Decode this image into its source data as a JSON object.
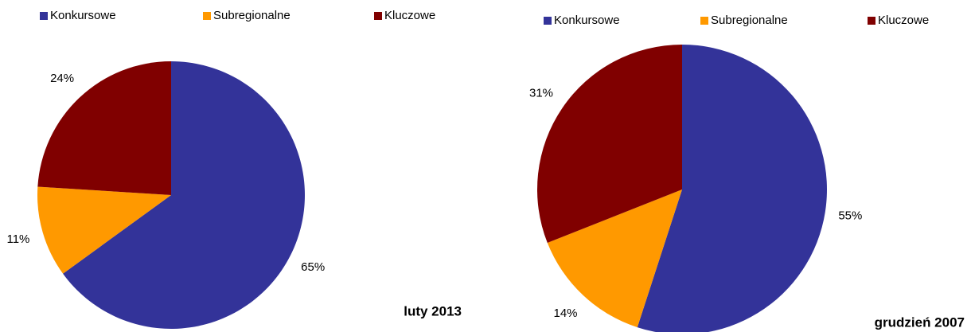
{
  "chart_data": [
    {
      "type": "pie",
      "title": "luty 2013",
      "categories": [
        "Konkursowe",
        "Subregionalne",
        "Kluczowe"
      ],
      "values": [
        65,
        11,
        24
      ],
      "value_labels": [
        "65%",
        "11%",
        "24%"
      ],
      "colors": [
        "#333399",
        "#ff9900",
        "#800000"
      ]
    },
    {
      "type": "pie",
      "title": "grudzień 2007",
      "categories": [
        "Konkursowe",
        "Subregionalne",
        "Kluczowe"
      ],
      "values": [
        55,
        14,
        31
      ],
      "value_labels": [
        "55%",
        "14%",
        "31%"
      ],
      "colors": [
        "#333399",
        "#ff9900",
        "#800000"
      ]
    }
  ]
}
